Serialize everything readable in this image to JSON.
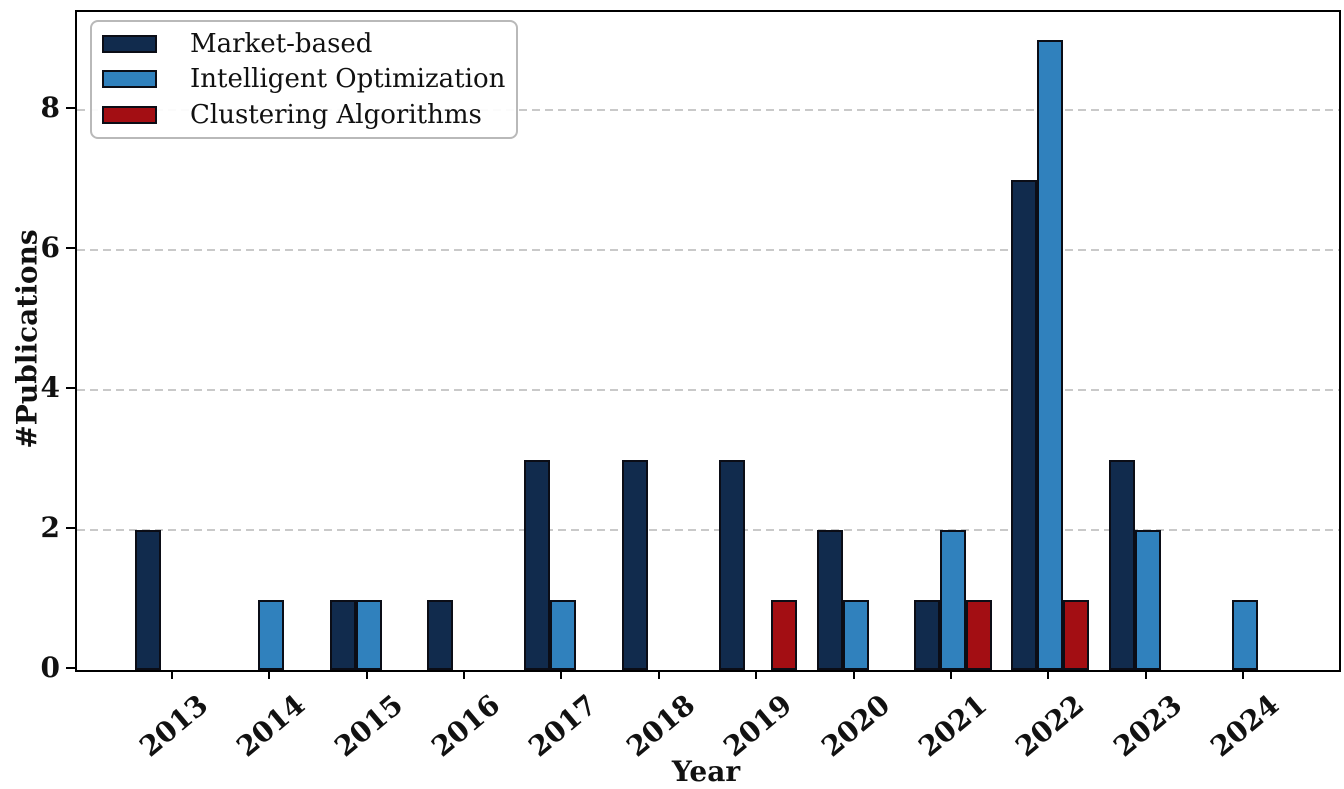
{
  "chart_data": {
    "type": "bar",
    "title": "",
    "xlabel": "Year",
    "ylabel": "#Publications",
    "categories": [
      "2013",
      "2014",
      "2015",
      "2016",
      "2017",
      "2018",
      "2019",
      "2020",
      "2021",
      "2022",
      "2023",
      "2024"
    ],
    "series": [
      {
        "name": "Market-based",
        "color": "#112b4d",
        "values": [
          2,
          0,
          1,
          1,
          3,
          3,
          3,
          2,
          1,
          7,
          3,
          0
        ]
      },
      {
        "name": "Intelligent Optimization",
        "color": "#3081bd",
        "values": [
          0,
          1,
          1,
          0,
          1,
          0,
          0,
          1,
          2,
          9,
          2,
          1
        ]
      },
      {
        "name": "Clustering Algorithms",
        "color": "#a30e13",
        "values": [
          0,
          0,
          0,
          0,
          0,
          0,
          1,
          0,
          1,
          1,
          0,
          0
        ]
      }
    ],
    "yticks": [
      0,
      2,
      4,
      6,
      8
    ],
    "ylim": [
      0,
      9.4
    ],
    "grid": "horizontal dashed",
    "legend_position": "upper left",
    "bar_edge_color": "#0b0d16",
    "grid_color": "#c9c9c9",
    "axis_color": "#000000"
  }
}
